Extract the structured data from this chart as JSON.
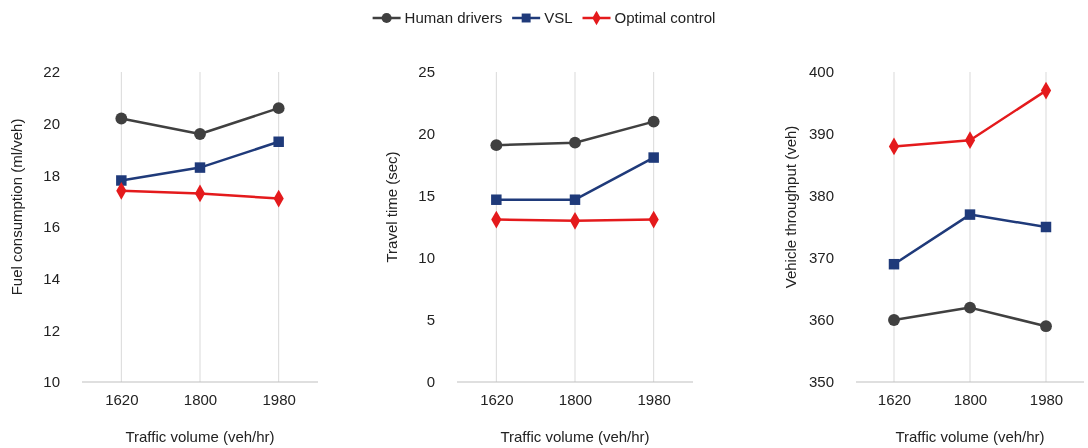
{
  "chart_data": [
    {
      "type": "line",
      "xlabel": "Traffic volume (veh/hr)",
      "ylabel": "Fuel consumption (ml/veh)",
      "categories": [
        "1620",
        "1800",
        "1980"
      ],
      "ylim": [
        10,
        22
      ],
      "yticks": [
        10,
        12,
        14,
        16,
        18,
        20,
        22
      ],
      "grid": "x",
      "legend": "top",
      "series": [
        {
          "name": "Human drivers",
          "color": "#404040",
          "marker": "circle",
          "values": [
            20.2,
            19.6,
            20.6
          ]
        },
        {
          "name": "VSL",
          "color": "#1f3a7a",
          "marker": "square",
          "values": [
            17.8,
            18.3,
            19.3
          ]
        },
        {
          "name": "Optimal control",
          "color": "#e41a1c",
          "marker": "diamond",
          "values": [
            17.4,
            17.3,
            17.1
          ]
        }
      ]
    },
    {
      "type": "line",
      "xlabel": "Traffic volume (veh/hr)",
      "ylabel": "Travel time (sec)",
      "categories": [
        "1620",
        "1800",
        "1980"
      ],
      "ylim": [
        0,
        25
      ],
      "yticks": [
        0,
        5,
        10,
        15,
        20,
        25
      ],
      "grid": "x",
      "series": [
        {
          "color": "#404040",
          "marker": "circle",
          "values": [
            19.1,
            19.3,
            21.0
          ]
        },
        {
          "color": "#1f3a7a",
          "marker": "square",
          "values": [
            14.7,
            14.7,
            18.1
          ]
        },
        {
          "color": "#e41a1c",
          "marker": "diamond",
          "values": [
            13.1,
            13.0,
            13.1
          ]
        }
      ]
    },
    {
      "type": "line",
      "xlabel": "Traffic volume (veh/hr)",
      "ylabel": "Vehicle throughput (veh)",
      "categories": [
        "1620",
        "1800",
        "1980"
      ],
      "ylim": [
        350,
        400
      ],
      "yticks": [
        350,
        360,
        370,
        380,
        390,
        400
      ],
      "grid": "x",
      "series": [
        {
          "color": "#404040",
          "marker": "circle",
          "values": [
            360,
            362,
            359
          ]
        },
        {
          "color": "#1f3a7a",
          "marker": "square",
          "values": [
            369,
            377,
            375
          ]
        },
        {
          "color": "#e41a1c",
          "marker": "diamond",
          "values": [
            388,
            389,
            397
          ]
        }
      ]
    }
  ]
}
